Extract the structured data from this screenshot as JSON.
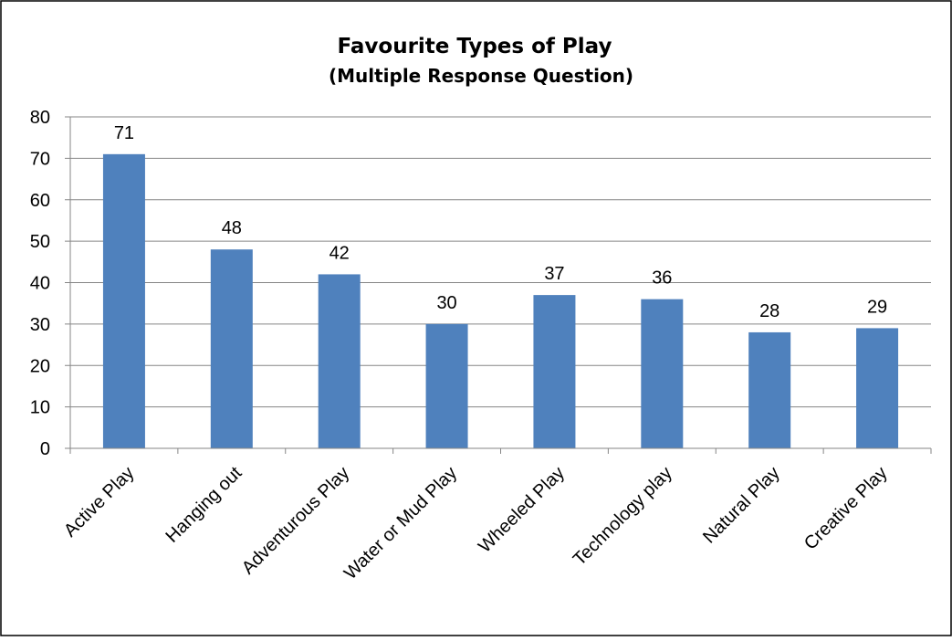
{
  "chart_data": {
    "type": "bar",
    "title": "Favourite Types of Play",
    "subtitle": "(Multiple Response Question)",
    "categories": [
      "Active Play",
      "Hanging out",
      "Adventurous Play",
      "Water or Mud Play",
      "Wheeled Play",
      "Technology play",
      "Natural Play",
      "Creative Play"
    ],
    "values": [
      71,
      48,
      42,
      30,
      37,
      36,
      28,
      29
    ],
    "data_labels": [
      "71",
      "48",
      "42",
      "30",
      "37",
      "36",
      "28",
      "29"
    ],
    "ylim": [
      0,
      80
    ],
    "yticks": [
      "0",
      "10",
      "20",
      "30",
      "40",
      "50",
      "60",
      "70",
      "80"
    ],
    "grid": true,
    "legend": "none",
    "colors": {
      "bar": "#4f81bd",
      "grid": "#868686",
      "frame": "#000000"
    }
  }
}
